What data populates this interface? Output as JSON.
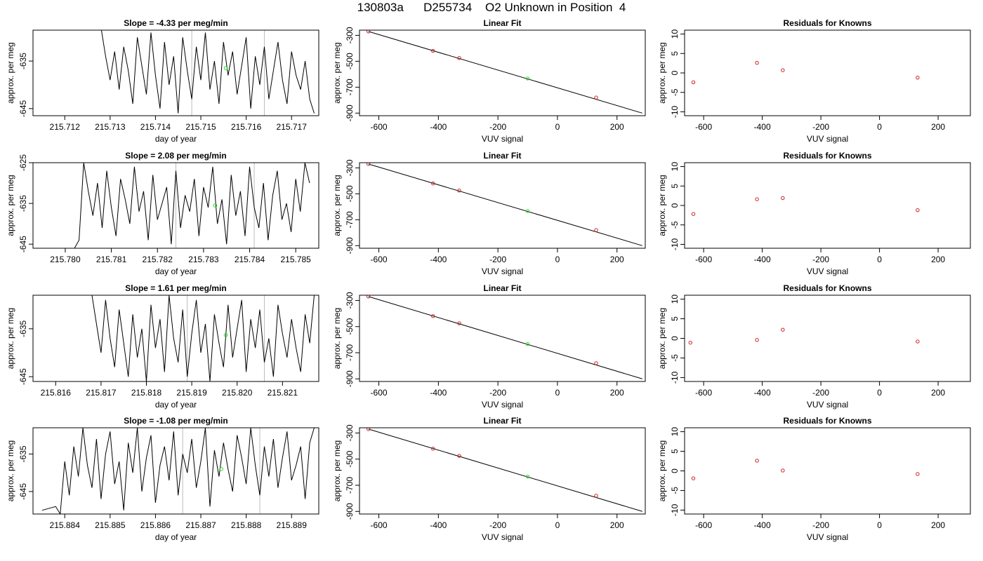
{
  "title": "130803a      D255734    O2 Unknown in Position  4",
  "chart_data": [
    {
      "type": "line",
      "title": "Slope =  -4.33  per meg/min",
      "xlabel": "day of year",
      "ylabel": "approx. per meg",
      "xlim": [
        215.7113,
        215.7176
      ],
      "xticks": [
        "215.712",
        "215.713",
        "215.714",
        "215.715",
        "215.716",
        "215.717"
      ],
      "ylim": [
        -646.5,
        -628.5
      ],
      "yticks": [
        "-635",
        "-645"
      ],
      "series": [
        {
          "x": [
            215.7128,
            215.7129,
            215.713,
            215.7131,
            215.7132,
            215.7133,
            215.7134,
            215.7135,
            215.7136,
            215.7137,
            215.7138,
            215.7139,
            215.714,
            215.7141,
            215.7142,
            215.7143,
            215.7144,
            215.7145,
            215.7146,
            215.7147,
            215.7148,
            215.7149,
            215.715,
            215.7151,
            215.7152,
            215.7153,
            215.7154,
            215.7155,
            215.7156,
            215.7157,
            215.7158,
            215.7159,
            215.716,
            215.7161,
            215.7162,
            215.7163,
            215.7164,
            215.7165,
            215.7166,
            215.7167,
            215.7168,
            215.7169,
            215.717,
            215.7171,
            215.7172,
            215.7173,
            215.7174,
            215.7175
          ],
          "y": [
            -628,
            -634,
            -639,
            -633,
            -641,
            -632,
            -637,
            -644,
            -630,
            -636,
            -642,
            -629,
            -638,
            -645,
            -631,
            -640,
            -634,
            -646,
            -630,
            -637,
            -643,
            -632,
            -639,
            -629,
            -641,
            -635,
            -644,
            -631,
            -638,
            -633,
            -642,
            -636,
            -630,
            -645,
            -634,
            -640,
            -632,
            -643,
            -637,
            -631,
            -639,
            -644,
            -633,
            -638,
            -641,
            -635,
            -643,
            -646
          ]
        }
      ],
      "vlines": [
        215.7148,
        215.7164
      ],
      "highlight": {
        "x": 215.71555,
        "y": -636.5
      }
    },
    {
      "type": "scatter",
      "title": "Linear Fit",
      "xlabel": "VUV signal",
      "ylabel": "approx. per meg",
      "xlim": [
        -665,
        295
      ],
      "xticks": [
        -600,
        -400,
        -200,
        0,
        200
      ],
      "ylim": [
        -920,
        -260
      ],
      "yticks": [
        -300,
        -500,
        -700,
        -900
      ],
      "knowns": {
        "x": [
          -635,
          -418,
          -330,
          130
        ],
        "y": [
          -270,
          -420,
          -475,
          -780
        ]
      },
      "unknown": {
        "x": -100,
        "y": -633
      },
      "fit_line": {
        "x": [
          -635,
          285
        ],
        "y": [
          -270,
          -900
        ]
      }
    },
    {
      "type": "scatter",
      "title": "Residuals for Knowns",
      "xlabel": "VUV signal",
      "ylabel": "approx. per meg",
      "xlim": [
        -665,
        310
      ],
      "xticks": [
        -600,
        -400,
        -200,
        0,
        200
      ],
      "ylim": [
        -11,
        11
      ],
      "yticks": [
        -10,
        -5,
        0,
        5,
        10
      ],
      "points": {
        "x": [
          -635,
          -418,
          -330,
          130
        ],
        "y": [
          -2.4,
          2.6,
          0.7,
          -1.2
        ]
      }
    },
    {
      "type": "line",
      "title": "Slope =  2.08  per meg/min",
      "xlabel": "day of year",
      "ylabel": "approx. per meg",
      "xlim": [
        215.7793,
        215.7855
      ],
      "xticks": [
        "215.780",
        "215.781",
        "215.782",
        "215.783",
        "215.784",
        "215.785"
      ],
      "ylim": [
        -646,
        -625
      ],
      "yticks": [
        "-625",
        "-635",
        "-645"
      ],
      "series": [
        {
          "x": [
            215.7798,
            215.7802,
            215.7803,
            215.7804,
            215.7805,
            215.7806,
            215.7807,
            215.7808,
            215.7809,
            215.781,
            215.7811,
            215.7812,
            215.7813,
            215.7814,
            215.7815,
            215.7816,
            215.7817,
            215.7818,
            215.7819,
            215.782,
            215.7821,
            215.7822,
            215.7823,
            215.7824,
            215.7825,
            215.7826,
            215.7827,
            215.7828,
            215.7829,
            215.783,
            215.7831,
            215.7832,
            215.7833,
            215.7834,
            215.7835,
            215.7836,
            215.7837,
            215.7838,
            215.7839,
            215.784,
            215.7841,
            215.7842,
            215.7843,
            215.7844,
            215.7845,
            215.7846,
            215.7847,
            215.7848,
            215.7849,
            215.785,
            215.7851,
            215.7852,
            215.7853
          ],
          "y": [
            -646,
            -646,
            -644,
            -625,
            -632,
            -638,
            -630,
            -641,
            -627,
            -636,
            -643,
            -629,
            -634,
            -640,
            -626,
            -637,
            -632,
            -644,
            -628,
            -639,
            -635,
            -631,
            -645,
            -627,
            -641,
            -633,
            -637,
            -629,
            -643,
            -631,
            -636,
            -626,
            -640,
            -634,
            -645,
            -628,
            -638,
            -632,
            -643,
            -626,
            -636,
            -641,
            -630,
            -644,
            -633,
            -627,
            -639,
            -635,
            -642,
            -629,
            -637,
            -625,
            -630
          ]
        }
      ],
      "vlines": [
        215.7824,
        215.7841
      ],
      "highlight": {
        "x": 215.78325,
        "y": -635.5
      }
    },
    {
      "type": "scatter",
      "title": "Linear Fit",
      "xlabel": "VUV signal",
      "ylabel": "approx. per meg",
      "xlim": [
        -665,
        295
      ],
      "xticks": [
        -600,
        -400,
        -200,
        0,
        200
      ],
      "ylim": [
        -920,
        -260
      ],
      "yticks": [
        -300,
        -500,
        -700,
        -900
      ],
      "knowns": {
        "x": [
          -635,
          -418,
          -330,
          130
        ],
        "y": [
          -270,
          -420,
          -475,
          -780
        ]
      },
      "unknown": {
        "x": -100,
        "y": -633
      },
      "fit_line": {
        "x": [
          -635,
          285
        ],
        "y": [
          -270,
          -900
        ]
      }
    },
    {
      "type": "scatter",
      "title": "Residuals for Knowns",
      "xlabel": "VUV signal",
      "ylabel": "approx. per meg",
      "xlim": [
        -665,
        310
      ],
      "xticks": [
        -600,
        -400,
        -200,
        0,
        200
      ],
      "ylim": [
        -11,
        11
      ],
      "yticks": [
        -10,
        -5,
        0,
        5,
        10
      ],
      "points": {
        "x": [
          -635,
          -418,
          -330,
          130
        ],
        "y": [
          -2.2,
          1.6,
          1.9,
          -1.2
        ]
      }
    },
    {
      "type": "line",
      "title": "Slope =  1.61  per meg/min",
      "xlabel": "day of year",
      "ylabel": "approx. per meg",
      "xlim": [
        215.8155,
        215.8218
      ],
      "xticks": [
        "215.816",
        "215.817",
        "215.818",
        "215.819",
        "215.820",
        "215.821"
      ],
      "ylim": [
        -646,
        -628
      ],
      "yticks": [
        "-635",
        "-645"
      ],
      "series": [
        {
          "x": [
            215.8168,
            215.8169,
            215.817,
            215.8171,
            215.8172,
            215.8173,
            215.8174,
            215.8175,
            215.8176,
            215.8177,
            215.8178,
            215.8179,
            215.818,
            215.8181,
            215.8182,
            215.8183,
            215.8184,
            215.8185,
            215.8186,
            215.8187,
            215.8188,
            215.8189,
            215.819,
            215.8191,
            215.8192,
            215.8193,
            215.8194,
            215.8195,
            215.8196,
            215.8197,
            215.8198,
            215.8199,
            215.82,
            215.8201,
            215.8202,
            215.8203,
            215.8204,
            215.8205,
            215.8206,
            215.8207,
            215.8208,
            215.8209,
            215.821,
            215.8211,
            215.8212,
            215.8213,
            215.8214,
            215.8215,
            215.8216,
            215.8217
          ],
          "y": [
            -628,
            -634,
            -640,
            -629,
            -637,
            -643,
            -631,
            -638,
            -645,
            -632,
            -641,
            -635,
            -646,
            -630,
            -639,
            -633,
            -644,
            -628,
            -637,
            -642,
            -631,
            -645,
            -636,
            -629,
            -640,
            -634,
            -646,
            -632,
            -638,
            -643,
            -630,
            -641,
            -635,
            -629,
            -644,
            -633,
            -639,
            -631,
            -642,
            -637,
            -645,
            -630,
            -636,
            -641,
            -633,
            -639,
            -644,
            -632,
            -638,
            -628
          ]
        }
      ],
      "vlines": [
        215.8189,
        215.8206
      ],
      "highlight": {
        "x": 215.81975,
        "y": -636.3
      }
    },
    {
      "type": "scatter",
      "title": "Linear Fit",
      "xlabel": "VUV signal",
      "ylabel": "approx. per meg",
      "xlim": [
        -665,
        295
      ],
      "xticks": [
        -600,
        -400,
        -200,
        0,
        200
      ],
      "ylim": [
        -920,
        -260
      ],
      "yticks": [
        -300,
        -500,
        -700,
        -900
      ],
      "knowns": {
        "x": [
          -635,
          -418,
          -330,
          130
        ],
        "y": [
          -270,
          -420,
          -475,
          -780
        ]
      },
      "unknown": {
        "x": -100,
        "y": -633
      },
      "fit_line": {
        "x": [
          -635,
          285
        ],
        "y": [
          -270,
          -900
        ]
      }
    },
    {
      "type": "scatter",
      "title": "Residuals for Knowns",
      "xlabel": "VUV signal",
      "ylabel": "approx. per meg",
      "xlim": [
        -665,
        310
      ],
      "xticks": [
        -600,
        -400,
        -200,
        0,
        200
      ],
      "ylim": [
        -11,
        11
      ],
      "yticks": [
        -10,
        -5,
        0,
        5,
        10
      ],
      "points": {
        "x": [
          -645,
          -418,
          -330,
          130
        ],
        "y": [
          -1.1,
          -0.4,
          2.2,
          -0.8
        ]
      }
    },
    {
      "type": "line",
      "title": "Slope =  -1.08  per meg/min",
      "xlabel": "day of year",
      "ylabel": "approx. per meg",
      "xlim": [
        215.8833,
        215.8896
      ],
      "xticks": [
        "215.884",
        "215.885",
        "215.886",
        "215.887",
        "215.888",
        "215.889"
      ],
      "ylim": [
        -651,
        -628
      ],
      "yticks": [
        "-635",
        "-645"
      ],
      "series": [
        {
          "x": [
            215.8835,
            215.8838,
            215.8839,
            215.884,
            215.8841,
            215.8842,
            215.8843,
            215.8844,
            215.8845,
            215.8846,
            215.8847,
            215.8848,
            215.8849,
            215.885,
            215.8851,
            215.8852,
            215.8853,
            215.8854,
            215.8855,
            215.8856,
            215.8857,
            215.8858,
            215.8859,
            215.886,
            215.8861,
            215.8862,
            215.8863,
            215.8864,
            215.8865,
            215.8866,
            215.8867,
            215.8868,
            215.8869,
            215.887,
            215.8871,
            215.8872,
            215.8873,
            215.8874,
            215.8875,
            215.8876,
            215.8877,
            215.8878,
            215.8879,
            215.888,
            215.8881,
            215.8882,
            215.8883,
            215.8884,
            215.8885,
            215.8886,
            215.8887,
            215.8888,
            215.8889,
            215.889,
            215.8891,
            215.8892,
            215.8893,
            215.8894,
            215.8895
          ],
          "y": [
            -650,
            -649,
            -651,
            -637,
            -646,
            -633,
            -641,
            -628,
            -638,
            -644,
            -631,
            -647,
            -635,
            -629,
            -643,
            -637,
            -650,
            -632,
            -640,
            -628,
            -645,
            -636,
            -630,
            -648,
            -638,
            -633,
            -642,
            -629,
            -646,
            -635,
            -640,
            -631,
            -644,
            -637,
            -628,
            -649,
            -634,
            -641,
            -632,
            -639,
            -645,
            -630,
            -636,
            -643,
            -628,
            -638,
            -646,
            -633,
            -641,
            -631,
            -644,
            -636,
            -629,
            -642,
            -638,
            -633,
            -647,
            -632,
            -628
          ]
        }
      ],
      "vlines": [
        215.8866,
        215.8883
      ],
      "highlight": {
        "x": 215.88745,
        "y": -639
      }
    },
    {
      "type": "scatter",
      "title": "Linear Fit",
      "xlabel": "VUV signal",
      "ylabel": "approx. per meg",
      "xlim": [
        -665,
        295
      ],
      "xticks": [
        -600,
        -400,
        -200,
        0,
        200
      ],
      "ylim": [
        -920,
        -260
      ],
      "yticks": [
        -300,
        -500,
        -700,
        -900
      ],
      "knowns": {
        "x": [
          -635,
          -418,
          -330,
          130
        ],
        "y": [
          -270,
          -420,
          -475,
          -780
        ]
      },
      "unknown": {
        "x": -100,
        "y": -633
      },
      "fit_line": {
        "x": [
          -635,
          285
        ],
        "y": [
          -270,
          -900
        ]
      }
    },
    {
      "type": "scatter",
      "title": "Residuals for Knowns",
      "xlabel": "VUV signal",
      "ylabel": "approx. per meg",
      "xlim": [
        -665,
        310
      ],
      "xticks": [
        -600,
        -400,
        -200,
        0,
        200
      ],
      "ylim": [
        -11,
        11
      ],
      "yticks": [
        -10,
        -5,
        0,
        5,
        10
      ],
      "points": {
        "x": [
          -635,
          -418,
          -330,
          130
        ],
        "y": [
          -1.9,
          2.6,
          0.1,
          -0.8
        ]
      }
    }
  ]
}
